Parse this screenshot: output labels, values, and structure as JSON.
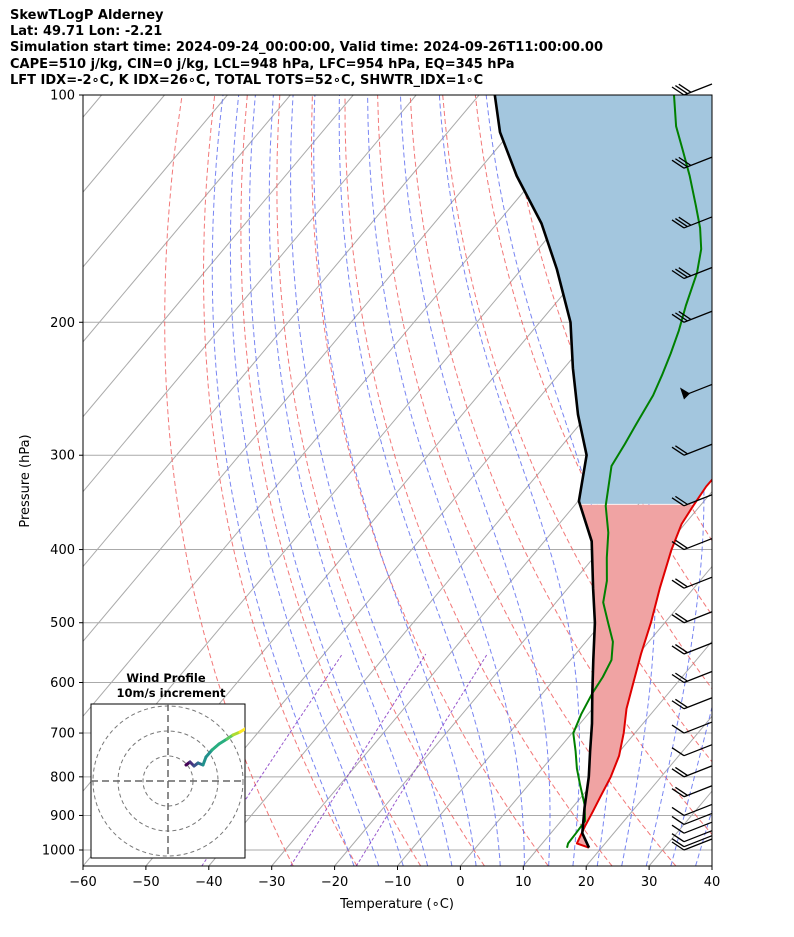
{
  "header": {
    "line1": "SkewTLogP Alderney",
    "line2": "Lat: 49.71   Lon: -2.21",
    "line3": "Simulation start time: 2024-09-24_00:00:00, Valid time: 2024-09-26T11:00:00.00",
    "line4": "CAPE=510 j/kg, CIN=0 j/kg, LCL=948 hPa, LFC=954 hPa, EQ=345 hPa",
    "line5": "LFT IDX=-2∘C, K IDX=26∘C, TOTAL TOTS=52∘C, SHWTR_IDX=1∘C"
  },
  "chart_data": {
    "type": "skew-t log-p",
    "xlabel": "Temperature (∘C)",
    "ylabel": "Pressure (hPa)",
    "xlim": [
      -60,
      40
    ],
    "ylim": [
      1050,
      100
    ],
    "x_ticks": [
      "−60",
      "−50",
      "−40",
      "−30",
      "−20",
      "−10",
      "0",
      "10",
      "20",
      "30",
      "40"
    ],
    "y_ticks": [
      100,
      200,
      300,
      400,
      500,
      600,
      700,
      800,
      900,
      1000
    ],
    "colors": {
      "temperature": "#e00000",
      "dewpoint": "#008000",
      "parcel": "#000000",
      "cape_fill": "#a3c6de",
      "cin_fill": "#f0a3a3",
      "dry_adiabats": "#f06060",
      "moist_adiabats": "#6070f0",
      "mixing_ratio": "#8030c0",
      "isotherms": "#aaaaaa"
    },
    "series": [
      {
        "name": "temperature",
        "points": [
          [
            18.0,
            993
          ],
          [
            15.5,
            980
          ],
          [
            14.5,
            930
          ],
          [
            13.8,
            890
          ],
          [
            13.0,
            850
          ],
          [
            12.0,
            800
          ],
          [
            10.5,
            750
          ],
          [
            8.2,
            700
          ],
          [
            5.4,
            650
          ],
          [
            3.0,
            600
          ],
          [
            0.4,
            550
          ],
          [
            -2.2,
            500
          ],
          [
            -5.4,
            450
          ],
          [
            -8.7,
            400
          ],
          [
            -10.5,
            370
          ],
          [
            -11.1,
            350
          ],
          [
            -11.6,
            330
          ],
          [
            -11.5,
            300
          ],
          [
            -13.2,
            270
          ],
          [
            -15.4,
            240
          ],
          [
            -17.5,
            215
          ],
          [
            -19.6,
            195
          ],
          [
            -21.6,
            175
          ],
          [
            -24.8,
            155
          ],
          [
            -28.3,
            140
          ],
          [
            -32.6,
            128
          ],
          [
            -36.7,
            118
          ],
          [
            -40.0,
            110
          ],
          [
            -43.5,
            100
          ]
        ]
      },
      {
        "name": "dewpoint",
        "points": [
          [
            14.5,
            993
          ],
          [
            14.1,
            980
          ],
          [
            14.0,
            950
          ],
          [
            13.8,
            915
          ],
          [
            11.5,
            870
          ],
          [
            8.2,
            820
          ],
          [
            5.5,
            780
          ],
          [
            3.0,
            740
          ],
          [
            0.2,
            700
          ],
          [
            -1.1,
            660
          ],
          [
            -2.1,
            620
          ],
          [
            -2.6,
            590
          ],
          [
            -3.5,
            560
          ],
          [
            -5.7,
            530
          ],
          [
            -9.0,
            500
          ],
          [
            -12.5,
            470
          ],
          [
            -14.8,
            440
          ],
          [
            -17.9,
            410
          ],
          [
            -21.0,
            380
          ],
          [
            -25.0,
            350
          ],
          [
            -29.4,
            310
          ],
          [
            -30.2,
            290
          ],
          [
            -31.2,
            270
          ],
          [
            -32.2,
            250
          ],
          [
            -33.5,
            235
          ],
          [
            -35.0,
            220
          ],
          [
            -36.8,
            205
          ],
          [
            -39.0,
            190
          ],
          [
            -41.6,
            172
          ],
          [
            -44.1,
            160
          ],
          [
            -47.1,
            150
          ],
          [
            -50.8,
            140
          ],
          [
            -55.7,
            128
          ],
          [
            -60.4,
            118
          ],
          [
            -64.5,
            110
          ],
          [
            -69.0,
            100
          ]
        ]
      },
      {
        "name": "parcel",
        "points": [
          [
            18.0,
            993
          ],
          [
            15.0,
            950
          ],
          [
            12.0,
            880
          ],
          [
            8.5,
            800
          ],
          [
            5.3,
            740
          ],
          [
            1.9,
            680
          ],
          [
            -2.1,
            620
          ],
          [
            -6.4,
            560
          ],
          [
            -11.1,
            500
          ],
          [
            -16.0,
            450
          ],
          [
            -22.5,
            390
          ],
          [
            -29.9,
            345
          ],
          [
            -34.8,
            300
          ],
          [
            -41.6,
            265
          ],
          [
            -48.6,
            230
          ],
          [
            -55.1,
            200
          ],
          [
            -64.4,
            170
          ],
          [
            -72.9,
            148
          ],
          [
            -83.2,
            128
          ],
          [
            -91.7,
            112
          ],
          [
            -97.5,
            100
          ]
        ]
      }
    ],
    "wind_barbs_pressure_hPa": [
      1000,
      990,
      975,
      950,
      925,
      900,
      850,
      800,
      750,
      700,
      650,
      600,
      550,
      500,
      450,
      400,
      350,
      300,
      250,
      200,
      175,
      150,
      125,
      100
    ],
    "hodograph": {
      "title": "Wind Profile",
      "subtitle": "10m/s increment"
    }
  }
}
